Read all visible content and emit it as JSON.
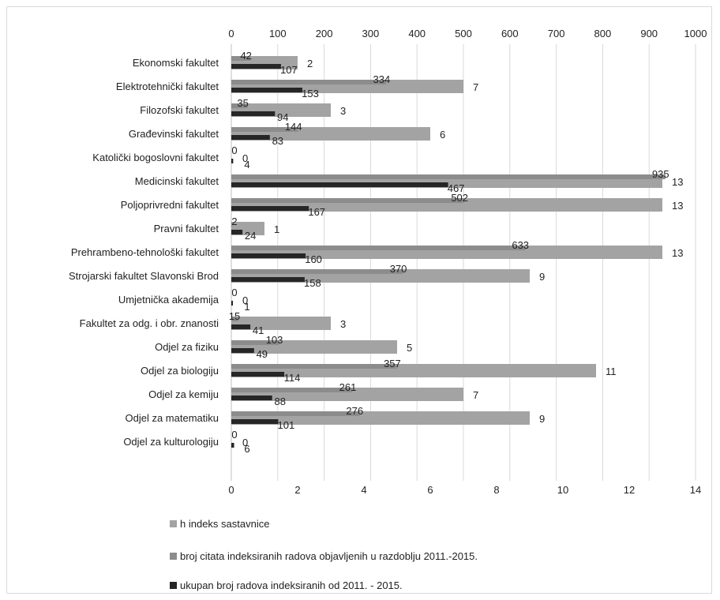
{
  "chart_data": {
    "type": "bar",
    "orientation": "horizontal",
    "categories": [
      "Ekonomski fakultet",
      "Elektrotehnički fakultet",
      "Filozofski fakultet",
      "Građevinski fakultet",
      "Katolički bogoslovni fakultet",
      "Medicinski fakultet",
      "Poljoprivredni fakultet",
      "Pravni fakultet",
      "Prehrambeno-tehnološki fakultet",
      "Strojarski fakultet Slavonski Brod",
      "Umjetnička akademija",
      "Fakultet za odg. i obr. znanosti",
      "Odjel za fiziku",
      "Odjel za biologiju",
      "Odjel za kemiju",
      "Odjel za matematiku",
      "Odjel za kulturologiju"
    ],
    "series": [
      {
        "name": "h indeks sastavnice",
        "axis": "bottom",
        "color": "#a3a3a3",
        "values": [
          2,
          7,
          3,
          6,
          0,
          13,
          13,
          1,
          13,
          9,
          0,
          3,
          5,
          11,
          7,
          9,
          0
        ]
      },
      {
        "name": "broj citata indeksiranih radova objavljenih u razdoblju 2011.-2015.",
        "axis": "top",
        "color": "#8c8c8c",
        "values": [
          42,
          334,
          35,
          144,
          0,
          935,
          502,
          2,
          633,
          370,
          0,
          15,
          103,
          357,
          261,
          276,
          0
        ]
      },
      {
        "name": "ukupan broj radova indeksiranih od 2011. - 2015.",
        "axis": "top",
        "color": "#262626",
        "values": [
          107,
          153,
          94,
          83,
          4,
          467,
          167,
          24,
          160,
          158,
          1,
          41,
          49,
          114,
          88,
          101,
          6
        ]
      }
    ],
    "top_axis": {
      "range": [
        0,
        1000
      ],
      "ticks": [
        "0",
        "100",
        "200",
        "300",
        "400",
        "500",
        "600",
        "700",
        "800",
        "900",
        "1000"
      ]
    },
    "bottom_axis": {
      "range": [
        0,
        14
      ],
      "ticks": [
        "0",
        "2",
        "4",
        "6",
        "8",
        "10",
        "12",
        "14"
      ]
    },
    "grid": "vertical",
    "legend_position": "bottom-left"
  }
}
